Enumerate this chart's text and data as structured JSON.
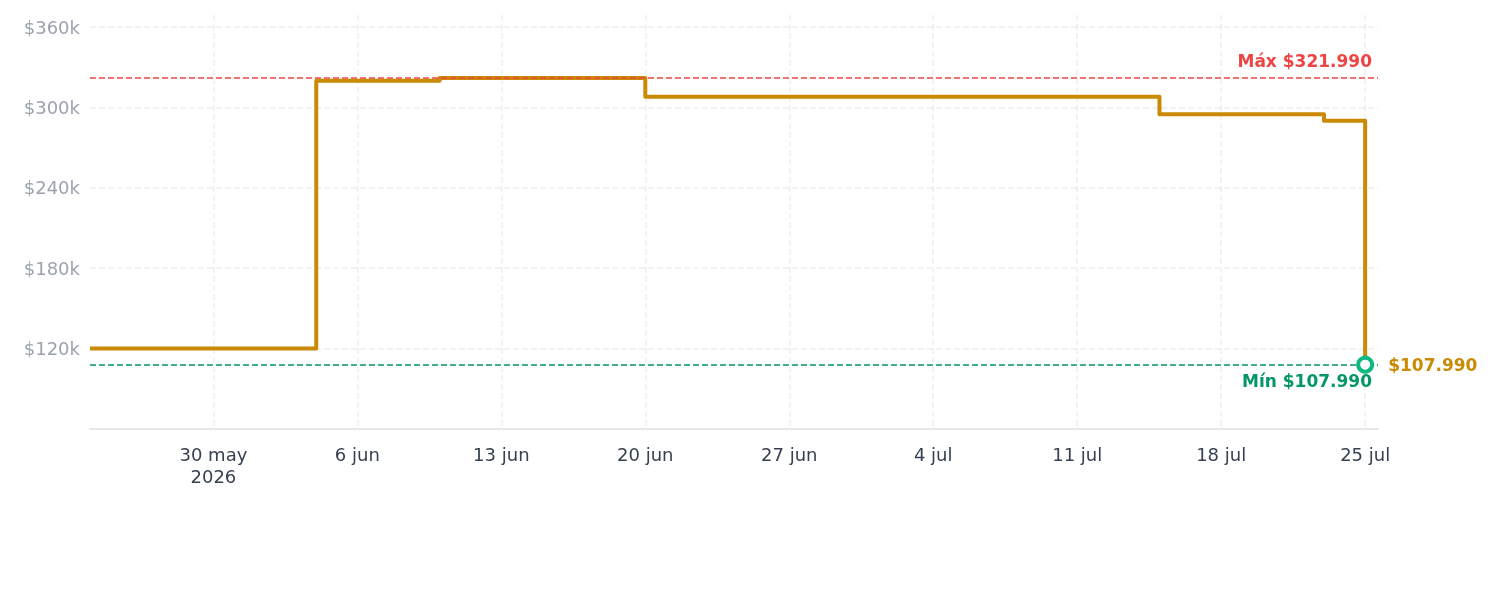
{
  "chart_data": {
    "type": "step",
    "x": [
      "2026-05-24",
      "2026-06-04",
      "2026-06-10",
      "2026-06-20",
      "2026-07-15",
      "2026-07-23",
      "2026-07-25"
    ],
    "values": [
      120000,
      320000,
      321990,
      308000,
      295000,
      290000,
      107990
    ],
    "color": "#ca8a04",
    "xlim": [
      "2026-05-24",
      "2026-07-25T15:00"
    ],
    "xticks": [
      {
        "value": "2026-05-30",
        "label": "30 may\n2026"
      },
      {
        "value": "2026-06-06",
        "label": "6 jun"
      },
      {
        "value": "2026-06-13",
        "label": "13 jun"
      },
      {
        "value": "2026-06-20",
        "label": "20 jun"
      },
      {
        "value": "2026-06-27",
        "label": "27 jun"
      },
      {
        "value": "2026-07-04",
        "label": "4 jul"
      },
      {
        "value": "2026-07-11",
        "label": "11 jul"
      },
      {
        "value": "2026-07-18",
        "label": "18 jul"
      },
      {
        "value": "2026-07-25",
        "label": "25 jul"
      }
    ],
    "ylim": [
      60000,
      369000
    ],
    "yticks": [
      {
        "value": 120000,
        "label": "$120k"
      },
      {
        "value": 180000,
        "label": "$180k"
      },
      {
        "value": 240000,
        "label": "$240k"
      },
      {
        "value": 300000,
        "label": "$300k"
      },
      {
        "value": 360000,
        "label": "$360k"
      }
    ],
    "ref_lines": [
      {
        "axis": "y",
        "value": 321990,
        "label": "Máx $321.990",
        "color": "#ef4444",
        "line_style": "dashed"
      },
      {
        "axis": "y",
        "value": 107990,
        "label": "Mín $107.990",
        "color": "#059669",
        "line_style": "dashed"
      }
    ],
    "annotations": [
      {
        "text": "$107.990",
        "x": "2026-07-25",
        "y": 107990
      }
    ],
    "grid": true,
    "marker": "none",
    "line_style": "solid"
  }
}
